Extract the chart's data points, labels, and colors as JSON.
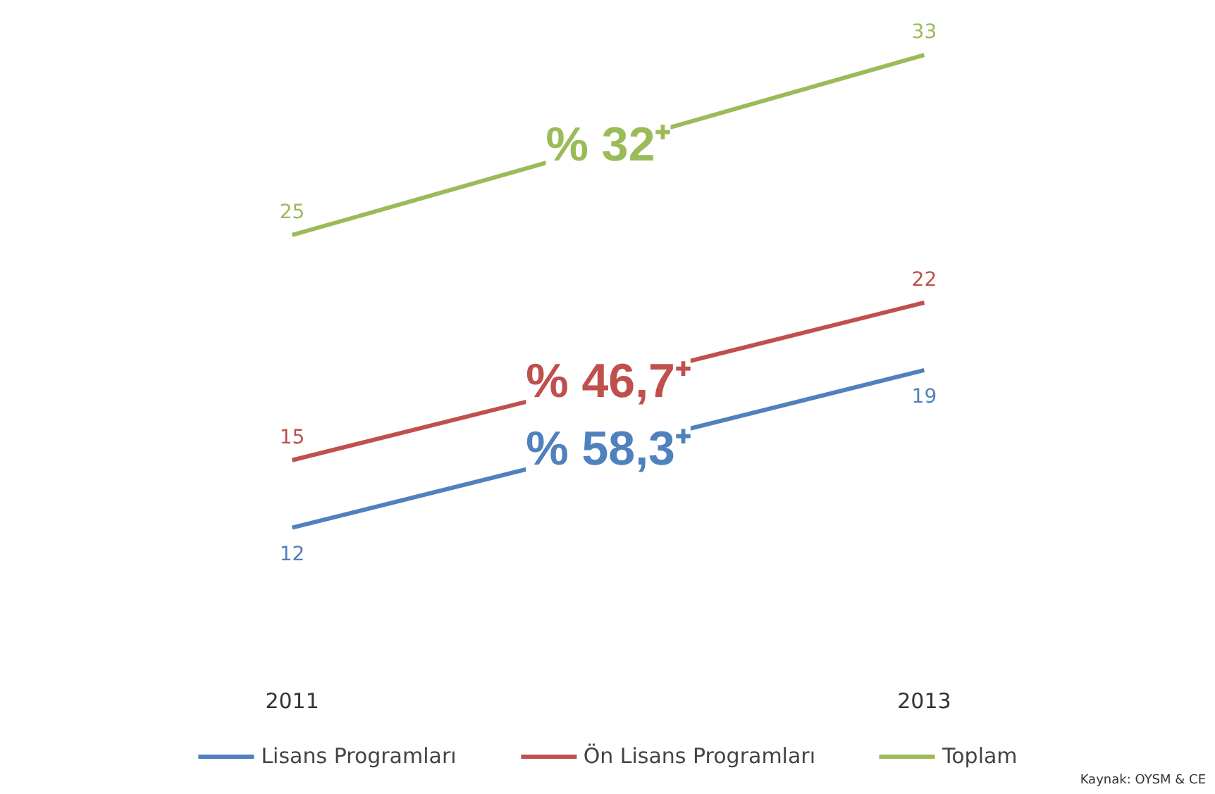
{
  "chart_data": {
    "type": "line",
    "categories": [
      "2011",
      "2013"
    ],
    "series": [
      {
        "name": "Lisans Programları",
        "color": "#4f81bd",
        "values": [
          12,
          19
        ]
      },
      {
        "name": "Ön Lisans Programları",
        "color": "#c0504d",
        "values": [
          15,
          22
        ]
      },
      {
        "name": "Toplam",
        "color": "#9bbb59",
        "values": [
          25,
          33
        ]
      }
    ],
    "data_labels": true,
    "grid": false,
    "legend": "bottom",
    "tick_labels": "x",
    "marker": "none",
    "line_style": "solid",
    "annotations": [
      "% 58,3⁺",
      "% 46,7⁺",
      "% 32⁺",
      "Kaynak: OYSM & CE"
    ]
  }
}
